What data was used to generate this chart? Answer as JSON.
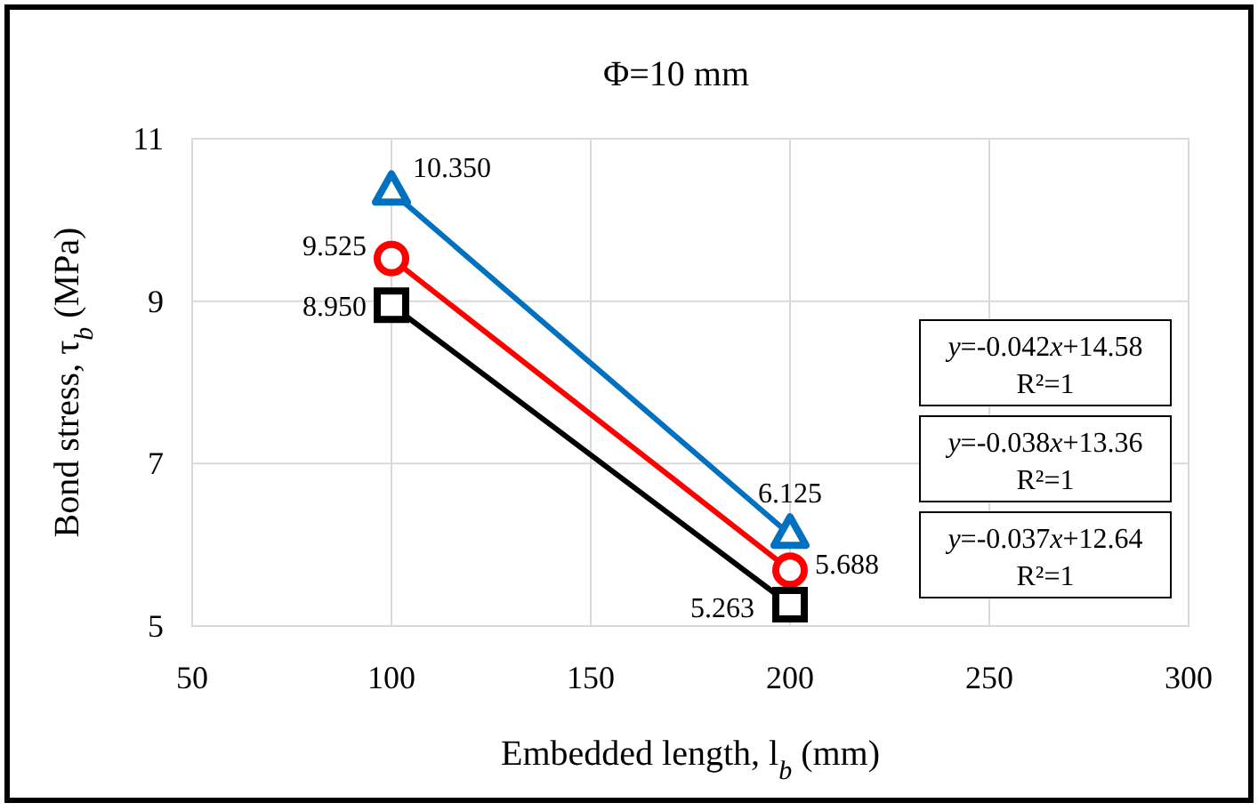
{
  "chart_data": {
    "type": "line",
    "title": "Φ=10 mm",
    "xlabel": "Embedded length, l$_{b}$ (mm)",
    "ylabel": "Bond stress, τ$_{b}$ (MPa)",
    "x": [
      100,
      200
    ],
    "series": [
      {
        "color": "#0070c0",
        "marker": "triangle",
        "values": [
          10.35,
          6.125
        ],
        "value_labels": [
          "10.350",
          "6.125"
        ]
      },
      {
        "color": "#ff0000",
        "marker": "circle",
        "values": [
          9.525,
          5.688
        ],
        "value_labels": [
          "9.525",
          "5.688"
        ]
      },
      {
        "color": "#000000",
        "marker": "square",
        "values": [
          8.95,
          5.263
        ],
        "value_labels": [
          "8.950",
          "5.263"
        ]
      }
    ],
    "xlim": [
      50,
      300
    ],
    "xticks": [
      50,
      100,
      150,
      200,
      250,
      300
    ],
    "ylim": [
      5,
      11
    ],
    "yticks": [
      5,
      7,
      9,
      11
    ],
    "grid": true,
    "line_style": "solid",
    "annotations": [
      "y=-0.042x+14.58\nR²=1",
      "y=-0.038x+13.36\nR²=1",
      "y=-0.037x+12.64\nR²=1"
    ]
  }
}
